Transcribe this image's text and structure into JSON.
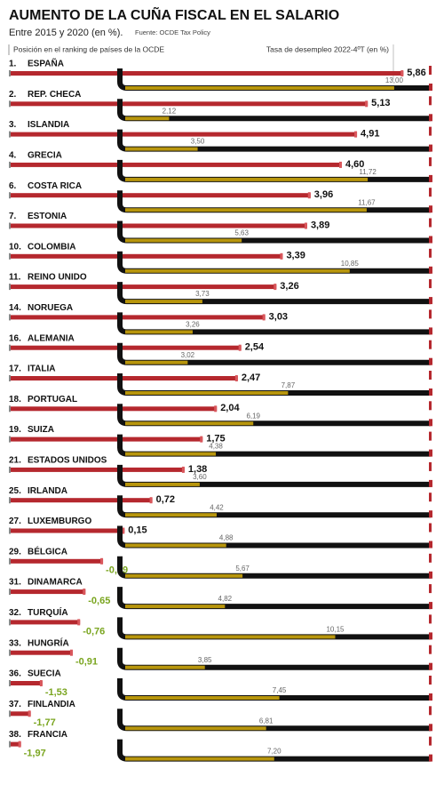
{
  "chart_data": {
    "type": "bar",
    "title": "AUMENTO DE LA CUÑA FISCAL EN EL SALARIO",
    "subtitle": "Entre 2015 y 2020 (en %).",
    "source": "Fuente: OCDE Tax Policy",
    "ranks": [
      "1.",
      "2.",
      "3.",
      "4.",
      "6.",
      "7.",
      "10.",
      "11.",
      "14.",
      "16.",
      "17.",
      "18.",
      "19.",
      "21.",
      "25.",
      "27.",
      "29.",
      "31.",
      "32.",
      "33.",
      "36.",
      "37.",
      "38."
    ],
    "categories": [
      "ESPAÑA",
      "REP. CHECA",
      "ISLANDIA",
      "GRECIA",
      "COSTA RICA",
      "ESTONIA",
      "COLOMBIA",
      "REINO UNIDO",
      "NORUEGA",
      "ALEMANIA",
      "ITALIA",
      "PORTUGAL",
      "SUIZA",
      "ESTADOS UNIDOS",
      "IRLANDA",
      "LUXEMBURGO",
      "BÉLGICA",
      "DINAMARCA",
      "TURQUÍA",
      "HUNGRÍA",
      "SUECIA",
      "FINLANDIA",
      "FRANCIA"
    ],
    "series": [
      {
        "name": "Posición en el ranking de países de la OCDE",
        "color": "#b5282e",
        "values": [
          5.86,
          5.13,
          4.91,
          4.6,
          3.96,
          3.89,
          3.39,
          3.26,
          3.03,
          2.54,
          2.47,
          2.04,
          1.75,
          1.38,
          0.72,
          0.15,
          -0.29,
          -0.65,
          -0.76,
          -0.91,
          -1.53,
          -1.77,
          -1.97
        ],
        "value_labels": [
          "5,86",
          "5,13",
          "4,91",
          "4,60",
          "3,96",
          "3,89",
          "3,39",
          "3,26",
          "3,03",
          "2,54",
          "2,47",
          "2,04",
          "1,75",
          "1,38",
          "0,72",
          "0,15",
          "-0,29",
          "-0,65",
          "-0,76",
          "-0,91",
          "-1,53",
          "-1,77",
          "-1,97"
        ]
      },
      {
        "name": "Tasa de desempleo 2022-4ºT (en %)",
        "color": "#b8960c",
        "values": [
          13.0,
          2.12,
          3.5,
          11.72,
          11.67,
          5.63,
          10.85,
          3.73,
          3.26,
          3.02,
          7.87,
          6.19,
          4.38,
          3.6,
          4.42,
          4.88,
          5.67,
          4.82,
          10.15,
          3.85,
          7.45,
          6.81,
          7.2
        ],
        "value_labels": [
          "13,00",
          "2,12",
          "3,50",
          "11,72",
          "11,67",
          "5,63",
          "10,85",
          "3,73",
          "3,26",
          "3,02",
          "7,87",
          "6,19",
          "4,38",
          "3,60",
          "4,42",
          "4,88",
          "5,67",
          "4,82",
          "10,15",
          "3,85",
          "7,45",
          "6,81",
          "7,20"
        ]
      }
    ]
  }
}
